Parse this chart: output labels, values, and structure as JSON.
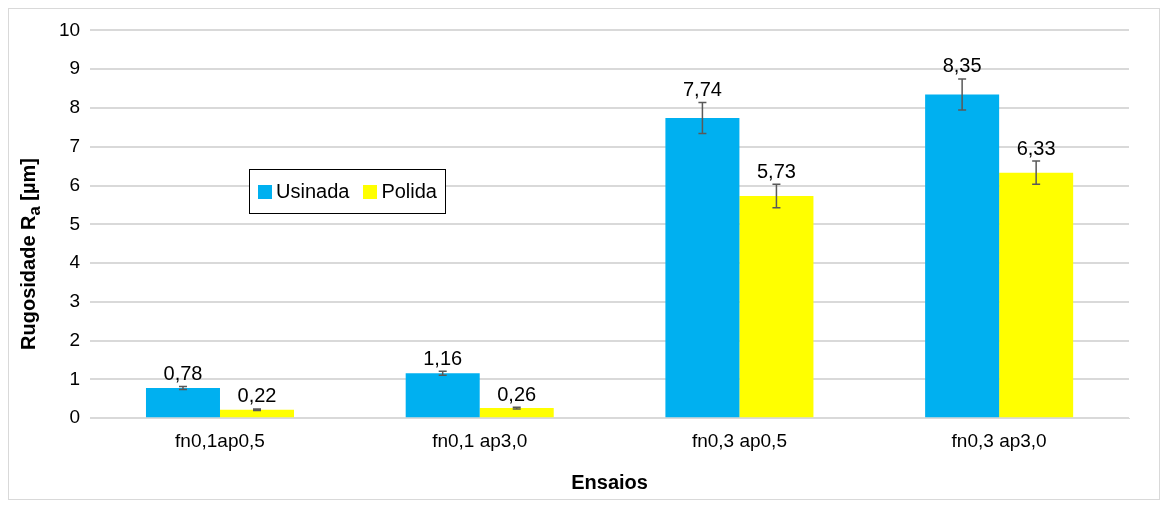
{
  "chart_data": {
    "type": "bar",
    "xlabel": "Ensaios",
    "ylabel": "Rugosidade R$_{a}$ [µm]",
    "categories": [
      "fn0,1ap0,5",
      "fn0,1 ap3,0",
      "fn0,3 ap0,5",
      "fn0,3 ap3,0"
    ],
    "series": [
      {
        "name": "Usinada",
        "color": "#00b0f0",
        "values": [
          0.78,
          1.16,
          7.74,
          8.35
        ],
        "errors": [
          0.04,
          0.05,
          0.4,
          0.4
        ],
        "value_labels": [
          "0,78",
          "1,16",
          "7,74",
          "8,35"
        ]
      },
      {
        "name": "Polida",
        "color": "#ffff00",
        "values": [
          0.22,
          0.26,
          5.73,
          6.33
        ],
        "errors": [
          0.02,
          0.02,
          0.3,
          0.3
        ],
        "value_labels": [
          "0,22",
          "0,26",
          "5,73",
          "6,33"
        ]
      }
    ],
    "ylim": [
      0,
      10
    ],
    "yticks": [
      0,
      1,
      2,
      3,
      4,
      5,
      6,
      7,
      8,
      9,
      10
    ],
    "grid": "y",
    "legend": "left"
  }
}
